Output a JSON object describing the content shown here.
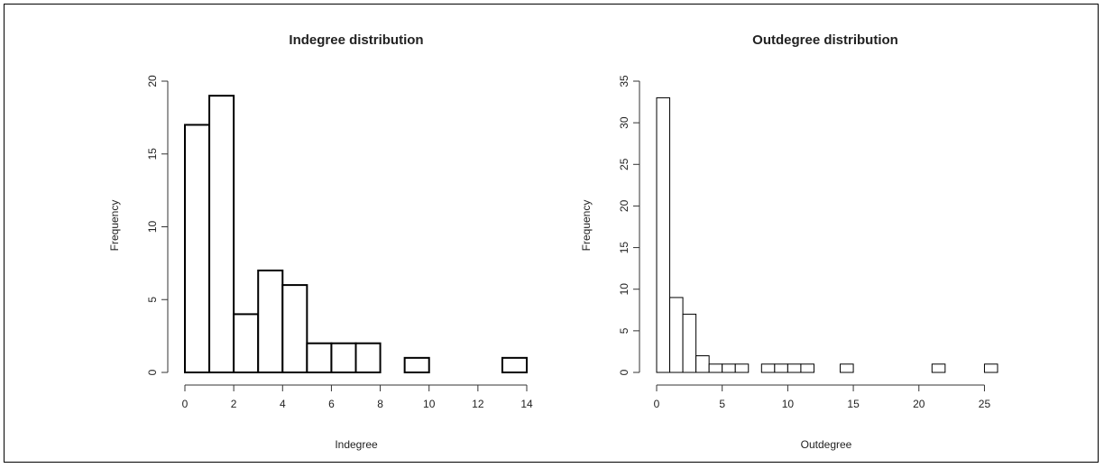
{
  "chart_data": [
    {
      "type": "bar",
      "title": "Indegree distribution",
      "xlabel": "Indegree",
      "ylabel": "Frequency",
      "xlim": [
        0,
        14
      ],
      "ylim": [
        0,
        20
      ],
      "xticks": [
        0,
        2,
        4,
        6,
        8,
        10,
        12,
        14
      ],
      "yticks": [
        0,
        5,
        10,
        15,
        20
      ],
      "bin_edges": [
        0,
        1,
        2,
        3,
        4,
        5,
        6,
        7,
        8,
        9,
        10,
        11,
        12,
        13,
        14
      ],
      "values": [
        17,
        19,
        4,
        7,
        6,
        2,
        2,
        2,
        0,
        1,
        0,
        0,
        0,
        1
      ],
      "grid": false
    },
    {
      "type": "bar",
      "title": "Outdegree distribution",
      "xlabel": "Outdegree",
      "ylabel": "Frequency",
      "xlim": [
        0,
        26
      ],
      "ylim": [
        0,
        35
      ],
      "xticks": [
        0,
        5,
        10,
        15,
        20,
        25
      ],
      "yticks": [
        0,
        5,
        10,
        15,
        20,
        25,
        30,
        35
      ],
      "bin_edges": [
        0,
        1,
        2,
        3,
        4,
        5,
        6,
        7,
        8,
        9,
        10,
        11,
        12,
        13,
        14,
        15,
        16,
        17,
        18,
        19,
        20,
        21,
        22,
        23,
        24,
        25,
        26
      ],
      "values": [
        33,
        9,
        7,
        2,
        1,
        1,
        1,
        0,
        1,
        1,
        1,
        1,
        0,
        0,
        1,
        0,
        0,
        0,
        0,
        0,
        0,
        1,
        0,
        0,
        0,
        1
      ],
      "grid": false
    }
  ]
}
